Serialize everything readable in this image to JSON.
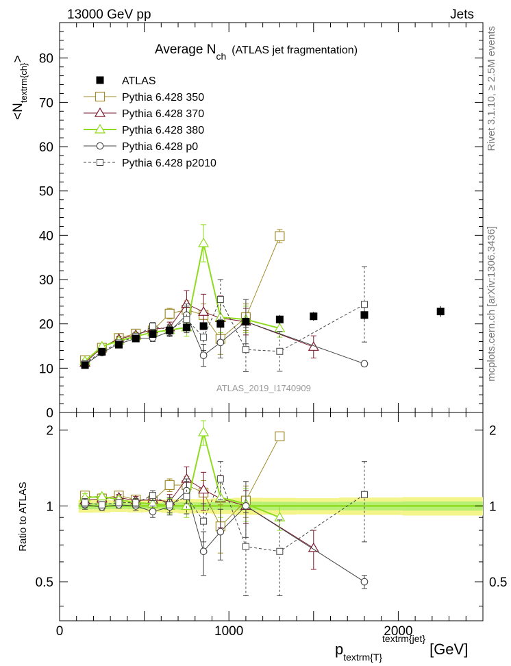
{
  "header": {
    "left": "13000 GeV pp",
    "right": "Jets"
  },
  "side_labels": {
    "rivet": "Rivet 3.1.10, ≥ 2.5M events",
    "mcplots": "mcplots.cern.ch [arXiv:1306.3436]"
  },
  "watermark": "ATLAS_2019_I1740909",
  "colors": {
    "ATLAS": "#000000",
    "Pythia 6.428 350": "#a08c2a",
    "Pythia 6.428 370": "#7a1a2e",
    "Pythia 6.428 380": "#8fdc1e",
    "Pythia 6.428 p0": "#444444",
    "Pythia 6.428 p2010": "#444444",
    "ratio_band_inner": "#8fdc1e",
    "ratio_band_outer": "#f3f58a"
  },
  "chart_data": [
    {
      "type": "scatter",
      "title": "Average N",
      "title_sub": "ch",
      "title_suffix": "(ATLAS jet fragmentation)",
      "ylabel": "<N",
      "ylabel_sub": "textrm{ch}",
      "ylabel_suffix": ">",
      "xlim": [
        0,
        2500
      ],
      "ylim": [
        0,
        88
      ],
      "yticks": [
        0,
        10,
        20,
        30,
        40,
        50,
        60,
        70,
        80
      ],
      "legend_position": "top-left",
      "series": [
        {
          "name": "ATLAS",
          "marker": "filled-square",
          "line": "none",
          "x": [
            150,
            250,
            350,
            450,
            550,
            650,
            750,
            850,
            950,
            1100,
            1300,
            1500,
            1800,
            2250
          ],
          "y": [
            10.7,
            13.7,
            15.3,
            16.7,
            17.7,
            18.5,
            19.2,
            19.5,
            20.0,
            20.5,
            21.0,
            21.7,
            22.0,
            22.8
          ],
          "err": [
            0.4,
            0.5,
            0.5,
            0.6,
            0.6,
            0.7,
            0.8,
            0.8,
            0.9,
            1.0,
            1.0,
            1.0,
            1.1,
            1.2
          ]
        },
        {
          "name": "Pythia 6.428 350",
          "marker": "open-square",
          "line": "solid",
          "x": [
            150,
            250,
            350,
            450,
            550,
            650,
            750,
            850,
            950,
            1100,
            1300
          ],
          "y": [
            11.8,
            14.6,
            16.8,
            17.8,
            18.5,
            22.3,
            23.2,
            22.0,
            16.6,
            21.5,
            39.8
          ],
          "err": [
            0.4,
            0.4,
            0.5,
            0.6,
            0.8,
            1.2,
            2.0,
            2.5,
            3.5,
            3.0,
            1.5
          ]
        },
        {
          "name": "Pythia 6.428 370",
          "marker": "open-triangle",
          "line": "solid",
          "x": [
            150,
            250,
            350,
            450,
            550,
            650,
            750,
            850,
            950,
            1100,
            1500
          ],
          "y": [
            11.2,
            14.7,
            16.6,
            17.5,
            18.8,
            19.2,
            24.5,
            22.7,
            21.3,
            20.5,
            14.8
          ],
          "err": [
            0.4,
            0.4,
            0.5,
            0.6,
            0.8,
            1.2,
            3.0,
            4.0,
            5.0,
            3.0,
            2.5
          ]
        },
        {
          "name": "Pythia 6.428 380",
          "marker": "open-triangle",
          "line": "solid-thick",
          "x": [
            150,
            250,
            350,
            450,
            550,
            650,
            750,
            850,
            950,
            1100,
            1300
          ],
          "y": [
            11.6,
            14.9,
            16.2,
            17.2,
            18.1,
            18.6,
            19.2,
            38.2,
            21.5,
            21.0,
            19.0
          ],
          "err": [
            0.4,
            0.4,
            0.5,
            0.6,
            0.8,
            1.2,
            2.0,
            4.2,
            3.5,
            3.0,
            2.0
          ]
        },
        {
          "name": "Pythia 6.428 p0",
          "marker": "open-circle",
          "line": "solid",
          "x": [
            150,
            250,
            350,
            450,
            550,
            650,
            750,
            850,
            950,
            1100,
            1800
          ],
          "y": [
            10.8,
            13.5,
            15.5,
            16.7,
            16.8,
            18.3,
            22.0,
            12.9,
            15.8,
            20.5,
            11.0
          ],
          "err": [
            0.4,
            0.4,
            0.5,
            0.6,
            0.8,
            1.2,
            2.5,
            2.5,
            3.5,
            5.0,
            0.6
          ]
        },
        {
          "name": "Pythia 6.428 p2010",
          "marker": "open-square-small",
          "line": "dashed",
          "x": [
            150,
            250,
            350,
            450,
            550,
            650,
            750,
            850,
            950,
            1100,
            1300,
            1800
          ],
          "y": [
            11.0,
            13.8,
            15.7,
            17.2,
            19.5,
            18.6,
            21.0,
            17.0,
            25.5,
            14.2,
            13.8,
            24.4
          ],
          "err": [
            0.4,
            0.4,
            0.5,
            0.6,
            0.8,
            1.2,
            3.0,
            3.0,
            4.5,
            5.0,
            4.5,
            8.5
          ]
        }
      ]
    },
    {
      "type": "scatter",
      "ylabel": "Ratio to ATLAS",
      "xlabel": "p",
      "xlabel_sub": "textrm{T}",
      "xlabel_sup": "textrm{jet}",
      "xlabel_unit": "[GeV]",
      "xlim": [
        0,
        2500
      ],
      "ylim": [
        0.35,
        2.35
      ],
      "yticks": [
        0.5,
        1,
        2
      ],
      "ytick_labels": [
        "0.5",
        "1",
        "2"
      ],
      "xticks": [
        0,
        1000,
        2000
      ],
      "xtick_labels": [
        "0",
        "1000",
        "2000"
      ],
      "reference_line": 1,
      "series": [
        {
          "name": "Pythia 6.428 350",
          "x": [
            150,
            250,
            350,
            450,
            550,
            650,
            750,
            850,
            950,
            1100,
            1300
          ],
          "y": [
            1.1,
            1.07,
            1.1,
            1.06,
            1.05,
            1.21,
            1.21,
            1.13,
            0.83,
            1.05,
            1.89
          ],
          "err": [
            0.04,
            0.03,
            0.03,
            0.04,
            0.05,
            0.07,
            0.1,
            0.13,
            0.18,
            0.15,
            0.07
          ]
        },
        {
          "name": "Pythia 6.428 370",
          "x": [
            150,
            250,
            350,
            450,
            550,
            650,
            750,
            850,
            950,
            1100,
            1500
          ],
          "y": [
            1.05,
            1.07,
            1.08,
            1.05,
            1.06,
            1.04,
            1.28,
            1.16,
            1.07,
            1.0,
            0.68
          ],
          "err": [
            0.04,
            0.03,
            0.03,
            0.04,
            0.05,
            0.07,
            0.15,
            0.2,
            0.25,
            0.15,
            0.12
          ]
        },
        {
          "name": "Pythia 6.428 380",
          "x": [
            150,
            250,
            350,
            450,
            550,
            650,
            750,
            850,
            950,
            1100,
            1300
          ],
          "y": [
            1.08,
            1.09,
            1.06,
            1.03,
            1.02,
            1.0,
            1.0,
            1.96,
            1.08,
            1.02,
            0.9
          ],
          "err": [
            0.04,
            0.03,
            0.03,
            0.04,
            0.05,
            0.07,
            0.1,
            0.22,
            0.18,
            0.15,
            0.1
          ]
        },
        {
          "name": "Pythia 6.428 p0",
          "x": [
            150,
            250,
            350,
            450,
            550,
            650,
            750,
            850,
            950,
            1100,
            1800
          ],
          "y": [
            1.01,
            0.99,
            1.01,
            1.0,
            0.95,
            0.99,
            1.15,
            0.66,
            0.79,
            1.0,
            0.5
          ],
          "err": [
            0.04,
            0.03,
            0.03,
            0.04,
            0.05,
            0.07,
            0.13,
            0.13,
            0.18,
            0.25,
            0.03
          ]
        },
        {
          "name": "Pythia 6.428 p2010",
          "x": [
            150,
            250,
            350,
            450,
            550,
            650,
            750,
            850,
            950,
            1100,
            1300,
            1800
          ],
          "y": [
            1.03,
            1.01,
            1.03,
            1.03,
            1.1,
            1.01,
            1.09,
            0.87,
            1.28,
            0.69,
            0.66,
            1.11
          ],
          "err": [
            0.04,
            0.03,
            0.03,
            0.04,
            0.05,
            0.07,
            0.16,
            0.15,
            0.22,
            0.25,
            0.22,
            0.39
          ]
        }
      ]
    }
  ]
}
